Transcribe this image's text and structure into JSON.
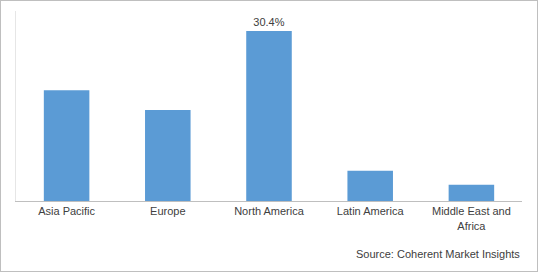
{
  "chart_data": {
    "type": "bar",
    "categories": [
      "Asia Pacific",
      "Europe",
      "North America",
      "Latin America",
      "Middle East and Africa"
    ],
    "values": [
      19.8,
      16.3,
      30.4,
      5.4,
      2.9
    ],
    "value_labels": [
      null,
      null,
      "30.4%",
      null,
      null
    ],
    "color": "#5b9bd5",
    "ylim": [
      0,
      34
    ],
    "tick_labels": "x",
    "grid": false,
    "annotations": [
      {
        "text": "Source: Coherent Market Insights"
      }
    ]
  }
}
